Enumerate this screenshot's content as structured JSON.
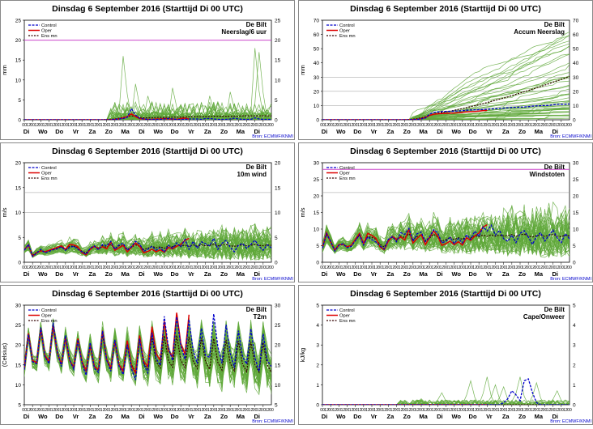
{
  "page": {
    "day_labels": [
      "Di",
      "Wo",
      "Do",
      "Vr",
      "Za",
      "Zo",
      "Ma",
      "Di",
      "Wo",
      "Do",
      "Vr",
      "Za",
      "Zo",
      "Ma",
      "Di"
    ],
    "hour_labels": [
      "00",
      "12"
    ],
    "source": "Bron: ECMWF/KNMI",
    "colors": {
      "control": "#0000cc",
      "oper": "#dd0000",
      "ensmean": "#330000",
      "members": "#5fa83a",
      "threshold": "#cc44cc",
      "grid": "#999999"
    }
  },
  "chart_data": [
    {
      "type": "line",
      "id": "p1",
      "title": "Dinsdag  6 September 2016    (Starttijd Di 00 UTC)",
      "station": "De Bilt",
      "variable": "Neerslag/6 uur",
      "ylabel": "mm",
      "ylim": [
        0,
        25
      ],
      "yticks": [
        0,
        5,
        10,
        15,
        20,
        25
      ],
      "threshold": 20,
      "gridlines": [],
      "legend": [
        "Control",
        "Oper",
        "Ens mn"
      ],
      "control": [
        0,
        0,
        0,
        0,
        0,
        0,
        0,
        0,
        0,
        0,
        0,
        0,
        0,
        0,
        0,
        0,
        0,
        0,
        0,
        0,
        0,
        0,
        0.1,
        0.2,
        0.3,
        0.6,
        2.8,
        1.2,
        0.4,
        0.2,
        0.1,
        0.1,
        0.1,
        0.1,
        0.2,
        0.3,
        0.2,
        0.1,
        0.1,
        0.1,
        0.2,
        0.2,
        0.2,
        0.1,
        0.3,
        0.3,
        0.2,
        0.1,
        0.1,
        0.1,
        0.2,
        0.4,
        0.2,
        0.1,
        0.1,
        0.1,
        0.5,
        0.2,
        0.1,
        0.1,
        0.1
      ],
      "oper": [
        0,
        0,
        0,
        0,
        0,
        0,
        0,
        0,
        0,
        0,
        0,
        0,
        0,
        0,
        0,
        0,
        0,
        0,
        0,
        0,
        0,
        0,
        0.1,
        0.2,
        0.5,
        0.8,
        1.5,
        0.8,
        0.3,
        0.2,
        0.1,
        0.1,
        0.2,
        0.2,
        0.3,
        0.2,
        0.2,
        0.1,
        0.3,
        0.4,
        0.2
      ],
      "ensmean": [
        0,
        0,
        0,
        0,
        0,
        0,
        0,
        0,
        0,
        0,
        0,
        0,
        0,
        0,
        0,
        0,
        0,
        0,
        0,
        0,
        0.1,
        0.1,
        0.2,
        0.4,
        0.6,
        0.8,
        1.0,
        0.8,
        0.6,
        0.5,
        0.5,
        0.5,
        0.6,
        0.6,
        0.6,
        0.6,
        0.7,
        0.7,
        0.7,
        0.7,
        0.8,
        0.8,
        0.8,
        0.8,
        0.8,
        0.8,
        0.9,
        0.9,
        0.9,
        0.9,
        0.9,
        0.9,
        0.9,
        1.0,
        1.0,
        1.0,
        1.0,
        1.0,
        1.0,
        1.0,
        1.0
      ],
      "members": {
        "seed": 11,
        "count": 40,
        "kind": "precip",
        "spikes": [
          [
            24,
            16
          ],
          [
            56,
            18
          ],
          [
            57,
            17
          ],
          [
            27,
            9
          ],
          [
            36,
            8
          ],
          [
            50,
            7
          ],
          [
            45,
            6
          ],
          [
            30,
            6
          ]
        ]
      }
    },
    {
      "type": "line",
      "id": "p2",
      "title": "Dinsdag  6 September 2016    (Starttijd Di 00 UTC)",
      "station": "De Bilt",
      "variable": "Accum Neerslag",
      "ylabel": "mm",
      "ylim": [
        0,
        70
      ],
      "yticks": [
        0,
        10,
        20,
        30,
        40,
        50,
        60,
        70
      ],
      "threshold": null,
      "gridlines": [
        10,
        20,
        30
      ],
      "legend": [
        "Control",
        "Oper",
        "Ens mn"
      ],
      "control": [
        0,
        0,
        0,
        0,
        0,
        0,
        0,
        0,
        0,
        0,
        0,
        0,
        0,
        0,
        0,
        0,
        0,
        0,
        0,
        0,
        0,
        0,
        0.1,
        0.3,
        0.6,
        1.2,
        4,
        5.2,
        5.6,
        5.8,
        5.9,
        6,
        6.1,
        6.2,
        6.4,
        6.7,
        6.9,
        7,
        7.1,
        7.2,
        7.4,
        7.6,
        7.8,
        7.9,
        8.2,
        8.5,
        8.7,
        8.8,
        8.9,
        9,
        9.2,
        9.6,
        9.8,
        9.9,
        10,
        10.1,
        10.6,
        10.8,
        10.9,
        11,
        11.1
      ],
      "oper": [
        0,
        0,
        0,
        0,
        0,
        0,
        0,
        0,
        0,
        0,
        0,
        0,
        0,
        0,
        0,
        0,
        0,
        0,
        0,
        0,
        0,
        0,
        0.1,
        0.3,
        0.8,
        1.6,
        3.1,
        3.9,
        4.2,
        4.4,
        4.5,
        4.6,
        4.8,
        5,
        5.3,
        5.5,
        5.7,
        5.8,
        6.1,
        6.5,
        6.7
      ],
      "ensmean": [
        0,
        0,
        0,
        0,
        0,
        0,
        0,
        0,
        0,
        0,
        0,
        0,
        0,
        0,
        0,
        0,
        0,
        0,
        0,
        0,
        0.1,
        0.2,
        0.4,
        0.8,
        1.4,
        2.2,
        3.2,
        4,
        4.6,
        5.1,
        5.6,
        6.1,
        6.7,
        7.3,
        7.9,
        8.5,
        9.2,
        9.9,
        10.6,
        11.3,
        12.1,
        12.9,
        13.7,
        14.5,
        15.3,
        16.1,
        17,
        17.9,
        18.8,
        19.7,
        20.6,
        21.5,
        22.4,
        23.4,
        24.4,
        25.4,
        26.4,
        27.4,
        28.4,
        29.4,
        30.4
      ],
      "members": {
        "seed": 23,
        "count": 45,
        "kind": "accum",
        "max": 62
      }
    },
    {
      "type": "line",
      "id": "p3",
      "title": "Dinsdag  6 September 2016    (Starttijd Di 00 UTC)",
      "station": "De Bilt",
      "variable": "10m wind",
      "ylabel": "m/s",
      "ylim": [
        0,
        20
      ],
      "yticks": [
        0,
        5,
        10,
        15,
        20
      ],
      "threshold": null,
      "gridlines": [
        10,
        14
      ],
      "legend": [
        "Control",
        "Oper",
        "Ens mn"
      ],
      "control": [
        2.4,
        3.6,
        1.2,
        1.8,
        2.6,
        1.9,
        2.2,
        2.5,
        2.7,
        3.1,
        2.4,
        3,
        3.2,
        2.6,
        2.1,
        1.6,
        2.8,
        3.3,
        2.5,
        3.6,
        3.3,
        4.2,
        2.6,
        3.5,
        3.8,
        2.4,
        3.1,
        4.2,
        3.7,
        2.2,
        2.6,
        3.2,
        2.4,
        2.9,
        2.1,
        3.4,
        2.8,
        3.9,
        3.1,
        4.6,
        2.6,
        4.2,
        2.8,
        4.1,
        3.7,
        3.3,
        4.8,
        2.6,
        3.8,
        4.4,
        3,
        2.1,
        3.4,
        3.8,
        2.8,
        3.6,
        4.4,
        3.2,
        2.4,
        3.5,
        2.9
      ],
      "oper": [
        2.5,
        3.5,
        1.2,
        1.9,
        2.3,
        2.1,
        2.4,
        2.7,
        3,
        3.3,
        2.6,
        3.6,
        3.5,
        3.1,
        1.9,
        1.5,
        2.6,
        3.2,
        2.8,
        3.1,
        2.7,
        4.1,
        2.4,
        2.9,
        3.4,
        2.1,
        3,
        3.9,
        3.2,
        1.9,
        2.2,
        2.6,
        2.1,
        2.5,
        2,
        3,
        2.7,
        3.2,
        3.6,
        4.4,
        4.8
      ],
      "ensmean": [
        2.5,
        3.4,
        1.4,
        2,
        2.4,
        2.1,
        2.4,
        2.6,
        2.8,
        3.1,
        2.6,
        3.2,
        3.3,
        2.9,
        2.2,
        1.9,
        2.7,
        3.2,
        2.7,
        3.3,
        3,
        3.6,
        2.8,
        3.3,
        3.4,
        2.6,
        3,
        3.5,
        3.2,
        2.6,
        2.8,
        3.2,
        2.9,
        3.1,
        2.8,
        3.3,
        3.1,
        3.4,
        3.2,
        3.5,
        3.2,
        3.5,
        3.2,
        3.5,
        3.3,
        3.4,
        3.6,
        3.3,
        3.5,
        3.6,
        3.3,
        3.2,
        3.4,
        3.5,
        3.3,
        3.4,
        3.6,
        3.4,
        3.3,
        3.5,
        3.4
      ],
      "members": {
        "seed": 37,
        "count": 40,
        "kind": "spread",
        "spread": 0.55,
        "maxv": 12
      }
    },
    {
      "type": "line",
      "id": "p4",
      "title": "Dinsdag  6 September 2016    (Starttijd Di 00 UTC)",
      "station": "De Bilt",
      "variable": "Windstoten",
      "ylabel": "m/s",
      "ylim": [
        0,
        30
      ],
      "yticks": [
        0,
        5,
        10,
        15,
        20,
        25,
        30
      ],
      "threshold": 28,
      "gridlines": [
        21
      ],
      "legend": [
        "Control",
        "Oper",
        "Ens mn"
      ],
      "control": [
        4.2,
        8.6,
        6.3,
        3.4,
        5.1,
        5.6,
        4.4,
        4.8,
        6.5,
        8.3,
        5.2,
        7.6,
        6.8,
        6.1,
        4.9,
        4,
        6.9,
        7.7,
        6.2,
        8.9,
        8.4,
        10.2,
        6.4,
        8.6,
        9.1,
        6.2,
        7.6,
        9.8,
        8.9,
        5.8,
        6.4,
        7.5,
        5.6,
        7.2,
        5.8,
        8.3,
        6.9,
        9.4,
        7.8,
        10.6,
        9.4,
        11.2,
        8.2,
        9.6,
        7.1,
        6.3,
        8.2,
        5.9,
        8.7,
        9.5,
        7.6,
        5.4,
        7.8,
        8.9,
        6.4,
        8.1,
        9.7,
        7.4,
        5.9,
        8.6,
        7.1
      ],
      "oper": [
        4.4,
        8.9,
        6.1,
        3.6,
        5.3,
        5.4,
        4.6,
        5.1,
        6.9,
        8.7,
        5.6,
        8.7,
        8.1,
        7.2,
        4.6,
        3.8,
        6.3,
        7.8,
        6.9,
        7.6,
        6.7,
        9.9,
        5.8,
        7.2,
        8.3,
        5.3,
        7.5,
        9.4,
        7.9,
        5.1,
        5.6,
        6.4,
        5.3,
        6.2,
        5.2,
        7.4,
        6.6,
        7.9,
        8.8,
        10.6,
        11.3
      ],
      "ensmean": [
        4.3,
        8.4,
        6.2,
        3.8,
        5.3,
        5.5,
        4.7,
        5.1,
        6.6,
        8.2,
        5.8,
        7.7,
        7.5,
        6.9,
        5.4,
        4.6,
        6.6,
        7.6,
        6.6,
        7.9,
        7.4,
        8.6,
        6.8,
        7.8,
        8.2,
        6.5,
        7.3,
        8.4,
        7.7,
        6.4,
        6.8,
        7.5,
        6.8,
        7.4,
        6.9,
        7.8,
        7.4,
        8,
        7.7,
        8.2,
        7.8,
        8.3,
        7.8,
        8.2,
        7.9,
        8,
        8.4,
        7.8,
        8.3,
        8.5,
        7.9,
        7.6,
        8,
        8.2,
        7.8,
        8.1,
        8.4,
        7.9,
        7.7,
        8.2,
        7.9
      ],
      "members": {
        "seed": 53,
        "count": 40,
        "kind": "spread",
        "spread": 0.5,
        "maxv": 21
      }
    },
    {
      "type": "line",
      "id": "p5",
      "title": "Dinsdag  6 September 2016    (Starttijd Di 00 UTC)",
      "station": "De Bilt",
      "variable": "T2m",
      "ylabel": "(Celsius)",
      "ylim": [
        5,
        30
      ],
      "yticks": [
        5,
        10,
        15,
        20,
        25,
        30
      ],
      "threshold": null,
      "gridlines": [],
      "legend": [
        "Control",
        "Oper",
        "Ens mn"
      ],
      "control": [
        13.8,
        22.6,
        15.8,
        15.3,
        24.4,
        17.1,
        15.3,
        25.6,
        18.2,
        14.6,
        22.4,
        16.3,
        13.9,
        21.3,
        15.5,
        12.4,
        20.6,
        14.2,
        13.1,
        23.5,
        16.2,
        13.4,
        21.3,
        14.7,
        12.6,
        20.1,
        14.1,
        11.2,
        21.6,
        15.2,
        13,
        23.1,
        16.6,
        14.9,
        27.2,
        19.3,
        16.1,
        27.1,
        19.8,
        16.4,
        26.4,
        18.6,
        15.3,
        24.2,
        17.4,
        16.9,
        27.8,
        19.6,
        15.4,
        25.1,
        17.9,
        14.3,
        23.6,
        17.1,
        15.2,
        24.1,
        16.8,
        13.4,
        22.8,
        16.1,
        14.6
      ],
      "oper": [
        14.1,
        22.9,
        16.1,
        15.6,
        24.1,
        17.4,
        15.9,
        24.9,
        18.1,
        15.1,
        21.9,
        16.2,
        14.4,
        21.6,
        15.8,
        13.6,
        19.9,
        14.6,
        13.8,
        23.6,
        16.4,
        14.2,
        20.9,
        15.1,
        13.4,
        21.1,
        14.8,
        12.9,
        22.4,
        15.9,
        14.6,
        24.6,
        17.8,
        16.2,
        25.9,
        18.6,
        17.1,
        28.1,
        20.4,
        17.6,
        27.6
      ],
      "ensmean": [
        14,
        22.7,
        15.9,
        15.4,
        24.1,
        17.2,
        15.6,
        24.9,
        18,
        15,
        22,
        16.2,
        14.3,
        21.3,
        15.7,
        13.4,
        20.4,
        14.8,
        13.6,
        22.6,
        16.2,
        14,
        21.3,
        15.2,
        13.6,
        21,
        15.1,
        13.2,
        21.4,
        15.4,
        13.9,
        21.9,
        15.8,
        14.2,
        22.3,
        16.1,
        14.4,
        22.4,
        16.2,
        14.3,
        22.1,
        16,
        14.1,
        21.8,
        15.8,
        13.9,
        21.6,
        15.6,
        13.7,
        21.3,
        15.4,
        13.5,
        21,
        15.2,
        13.3,
        20.8,
        15.1,
        13.2,
        20.6,
        15,
        13.1
      ],
      "members": {
        "seed": 71,
        "count": 40,
        "kind": "spread",
        "spread": 0.08,
        "addSpread": 3.2,
        "maxv": 29.5,
        "minv": 7.2
      }
    },
    {
      "type": "line",
      "id": "p6",
      "title": "Dinsdag  6 September 2016    (Starttijd Di 00 UTC)",
      "station": "De Bilt",
      "variable": "Cape/Onweer",
      "ylabel": "kJ/kg",
      "ylim": [
        0,
        5
      ],
      "yticks": [
        0,
        1,
        2,
        3,
        4,
        5
      ],
      "threshold": null,
      "gridlines": [],
      "legend": [
        "Control",
        "Oper",
        "Ens mn"
      ],
      "control": [
        0,
        0,
        0,
        0,
        0,
        0,
        0,
        0,
        0,
        0,
        0,
        0,
        0,
        0,
        0,
        0,
        0,
        0,
        0,
        0,
        0,
        0,
        0,
        0,
        0,
        0,
        0,
        0,
        0,
        0,
        0,
        0,
        0,
        0,
        0,
        0,
        0,
        0,
        0,
        0,
        0,
        0,
        0,
        0,
        0.1,
        0.3,
        0.7,
        0.5,
        0.2,
        1.2,
        1.3,
        0.6,
        0.1,
        0,
        0,
        0,
        0,
        0,
        0,
        0,
        0
      ],
      "oper": [
        0,
        0,
        0,
        0,
        0,
        0,
        0,
        0,
        0,
        0,
        0,
        0,
        0,
        0,
        0,
        0,
        0,
        0,
        0,
        0,
        0,
        0,
        0,
        0,
        0,
        0,
        0,
        0,
        0,
        0,
        0,
        0,
        0,
        0,
        0,
        0,
        0,
        0,
        0,
        0,
        0
      ],
      "ensmean": [
        0,
        0,
        0,
        0,
        0,
        0,
        0,
        0,
        0,
        0,
        0,
        0,
        0,
        0,
        0,
        0,
        0,
        0,
        0,
        0,
        0,
        0,
        0,
        0,
        0,
        0,
        0,
        0,
        0,
        0,
        0,
        0,
        0,
        0,
        0,
        0,
        0,
        0,
        0,
        0,
        0,
        0,
        0,
        0,
        0,
        0,
        0,
        0,
        0,
        0,
        0,
        0,
        0,
        0,
        0,
        0,
        0,
        0,
        0,
        0,
        0
      ],
      "members": {
        "seed": 89,
        "count": 30,
        "kind": "cape",
        "spikes": [
          [
            36,
            1.2
          ],
          [
            40,
            1.4
          ],
          [
            42,
            1.0
          ],
          [
            48,
            1.4
          ],
          [
            52,
            1.1
          ],
          [
            29,
            0.6
          ],
          [
            24,
            0.3
          ],
          [
            57,
            0.7
          ],
          [
            44,
            0.9
          ]
        ]
      }
    }
  ]
}
